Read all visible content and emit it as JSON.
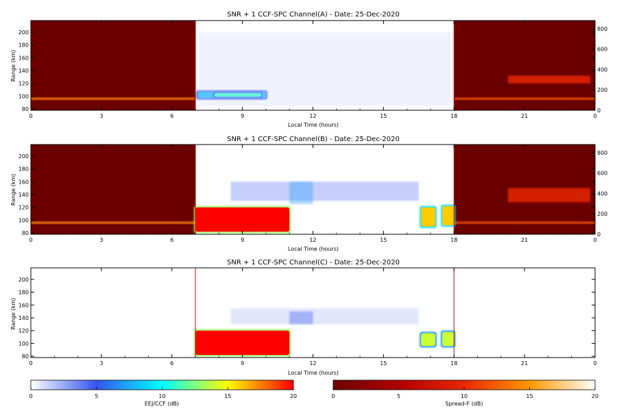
{
  "chart_data": {
    "type": "heatmap",
    "panels": [
      {
        "title": "SNR + 1 CCF-SPC Channel(A) - Date: 25-Dec-2020",
        "xlabel": "Local Time (hours)",
        "ylabel": "Range (km)",
        "xlim": [
          0,
          24
        ],
        "ylim": [
          78,
          218
        ],
        "x_tick_labels": [
          "0",
          "3",
          "6",
          "9",
          "12",
          "15",
          "18",
          "21",
          "0"
        ],
        "y_tick_labels": [
          "80",
          "100",
          "120",
          "140",
          "160",
          "180",
          "200"
        ],
        "right_axis_ticks": [
          "0",
          "200",
          "400",
          "600",
          "800"
        ],
        "spread_f_intervals": [
          [
            0,
            7
          ],
          [
            18,
            24
          ]
        ],
        "features": [
          {
            "kind": "spread-f",
            "x": [
              0,
              7
            ],
            "y": [
              94,
              98
            ],
            "level_db": 14
          },
          {
            "kind": "spread-f",
            "x": [
              18,
              24
            ],
            "y": [
              94,
              98
            ],
            "level_db": 12
          },
          {
            "kind": "spread-f",
            "x": [
              20.3,
              23.8
            ],
            "y": [
              120,
              132
            ],
            "level_db": 10
          },
          {
            "kind": "eej",
            "x": [
              7.1,
              10.0
            ],
            "y": [
              97,
              107
            ],
            "level_db": 8
          },
          {
            "kind": "eej",
            "x": [
              7.8,
              9.8
            ],
            "y": [
              99,
              105
            ],
            "level_db": 11
          },
          {
            "kind": "eej-weak",
            "x": [
              7.1,
              17.9
            ],
            "y": [
              85,
              200
            ],
            "level_db": 1
          }
        ]
      },
      {
        "title": "SNR + 1 CCF-SPC Channel(B) - Date: 25-Dec-2020",
        "xlabel": "Local Time (hours)",
        "ylabel": "Range (km)",
        "xlim": [
          0,
          24
        ],
        "ylim": [
          78,
          218
        ],
        "x_tick_labels": [
          "0",
          "3",
          "6",
          "9",
          "12",
          "15",
          "18",
          "21",
          "0"
        ],
        "y_tick_labels": [
          "80",
          "100",
          "120",
          "140",
          "160",
          "180",
          "200"
        ],
        "right_axis_ticks": [
          "0",
          "200",
          "400",
          "600",
          "800"
        ],
        "spread_f_intervals": [
          [
            0,
            7
          ],
          [
            18,
            24
          ]
        ],
        "features": [
          {
            "kind": "spread-f",
            "x": [
              0,
              7
            ],
            "y": [
              94,
              98
            ],
            "level_db": 14
          },
          {
            "kind": "spread-f",
            "x": [
              18,
              24
            ],
            "y": [
              94,
              98
            ],
            "level_db": 12
          },
          {
            "kind": "spread-f",
            "x": [
              20.3,
              23.8
            ],
            "y": [
              128,
              150
            ],
            "level_db": 10
          },
          {
            "kind": "eej",
            "x": [
              7.0,
              11.0
            ],
            "y": [
              82,
              120
            ],
            "level_db": 20
          },
          {
            "kind": "eej",
            "x": [
              16.6,
              17.2
            ],
            "y": [
              90,
              120
            ],
            "level_db": 16
          },
          {
            "kind": "eej",
            "x": [
              17.5,
              18.0
            ],
            "y": [
              92,
              122
            ],
            "level_db": 16
          },
          {
            "kind": "eej-weak",
            "x": [
              8.5,
              16.5
            ],
            "y": [
              130,
              160
            ],
            "level_db": 4
          },
          {
            "kind": "eej-weak",
            "x": [
              11.0,
              12.0
            ],
            "y": [
              125,
              160
            ],
            "level_db": 7
          }
        ]
      },
      {
        "title": "SNR + 1 CCF-SPC Channel(C) - Date: 25-Dec-2020",
        "xlabel": "Local Time (hours)",
        "ylabel": "Range (km)",
        "xlim": [
          0,
          24
        ],
        "ylim": [
          78,
          218
        ],
        "x_tick_labels": [
          "0",
          "3",
          "6",
          "9",
          "12",
          "15",
          "18",
          "21",
          "0"
        ],
        "y_tick_labels": [
          "80",
          "100",
          "120",
          "140",
          "160",
          "180",
          "200"
        ],
        "features": [
          {
            "kind": "eej",
            "x": [
              7.0,
              11.0
            ],
            "y": [
              82,
              120
            ],
            "level_db": 20
          },
          {
            "kind": "eej",
            "x": [
              16.6,
              17.2
            ],
            "y": [
              96,
              116
            ],
            "level_db": 14
          },
          {
            "kind": "eej",
            "x": [
              17.5,
              18.0
            ],
            "y": [
              96,
              118
            ],
            "level_db": 14
          },
          {
            "kind": "eej-weak",
            "x": [
              8.5,
              16.5
            ],
            "y": [
              130,
              155
            ],
            "level_db": 2
          },
          {
            "kind": "eej-weak",
            "x": [
              11.0,
              12.0
            ],
            "y": [
              130,
              150
            ],
            "level_db": 5
          }
        ]
      }
    ],
    "colorbars": [
      {
        "label": "EEJ/CCF (dB)",
        "range": [
          0,
          20
        ],
        "tick_labels": [
          "0",
          "5",
          "10",
          "15",
          "20"
        ],
        "colors": [
          "#ffffff",
          "#3355ee",
          "#00ffff",
          "#ffff00",
          "#ff0000"
        ]
      },
      {
        "label": "Spread-F (dB)",
        "range": [
          0,
          20
        ],
        "tick_labels": [
          "0",
          "5",
          "10",
          "15",
          "20"
        ],
        "colors": [
          "#6b0000",
          "#b00000",
          "#e82800",
          "#ff9800",
          "#ffffff"
        ]
      }
    ]
  }
}
